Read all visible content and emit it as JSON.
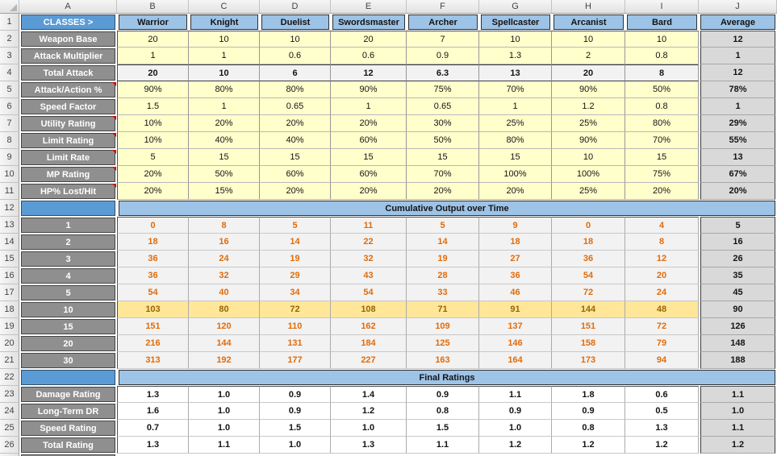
{
  "sheet": {
    "column_letters": [
      "A",
      "B",
      "C",
      "D",
      "E",
      "F",
      "G",
      "H",
      "I",
      "J"
    ]
  },
  "colors": {
    "accent_blue": "#5B9BD5",
    "light_blue": "#9DC3E6",
    "label_gray": "#8F8F8F",
    "input_yellow": "#FFFFCC",
    "calc_gray": "#F2F2F2",
    "average_gray": "#D9D9D9",
    "highlight_gold": "#FFE699",
    "orange_text": "#E26B0A",
    "highlight_text": "#9C6500"
  },
  "classes_row": {
    "row": "1",
    "label": "CLASSES >",
    "columns": [
      "Warrior",
      "Knight",
      "Duelist",
      "Swordsmaster",
      "Archer",
      "Spellcaster",
      "Arcanist",
      "Bard"
    ],
    "average_label": "Average"
  },
  "stat_rows": [
    {
      "row": "2",
      "label": "Weapon Base",
      "has_comment": false,
      "emphasis": "input",
      "values": [
        "20",
        "10",
        "10",
        "20",
        "7",
        "10",
        "10",
        "10"
      ],
      "average": "12"
    },
    {
      "row": "3",
      "label": "Attack Multiplier",
      "has_comment": false,
      "emphasis": "input",
      "values": [
        "1",
        "1",
        "0.6",
        "0.6",
        "0.9",
        "1.3",
        "2",
        "0.8"
      ],
      "average": "1"
    },
    {
      "row": "4",
      "label": "Total Attack",
      "has_comment": false,
      "emphasis": "calc",
      "values": [
        "20",
        "10",
        "6",
        "12",
        "6.3",
        "13",
        "20",
        "8"
      ],
      "average": "12"
    },
    {
      "row": "5",
      "label": "Attack/Action %",
      "has_comment": true,
      "emphasis": "input",
      "values": [
        "90%",
        "80%",
        "80%",
        "90%",
        "75%",
        "70%",
        "90%",
        "50%"
      ],
      "average": "78%"
    },
    {
      "row": "6",
      "label": "Speed Factor",
      "has_comment": false,
      "emphasis": "input",
      "values": [
        "1.5",
        "1",
        "0.65",
        "1",
        "0.65",
        "1",
        "1.2",
        "0.8"
      ],
      "average": "1"
    },
    {
      "row": "7",
      "label": "Utility Rating",
      "has_comment": true,
      "emphasis": "input",
      "values": [
        "10%",
        "20%",
        "20%",
        "20%",
        "30%",
        "25%",
        "25%",
        "80%"
      ],
      "average": "29%"
    },
    {
      "row": "8",
      "label": "Limit Rating",
      "has_comment": true,
      "emphasis": "input",
      "values": [
        "10%",
        "40%",
        "40%",
        "60%",
        "50%",
        "80%",
        "90%",
        "70%"
      ],
      "average": "55%"
    },
    {
      "row": "9",
      "label": "Limit Rate",
      "has_comment": true,
      "emphasis": "input",
      "values": [
        "5",
        "15",
        "15",
        "15",
        "15",
        "15",
        "10",
        "15"
      ],
      "average": "13"
    },
    {
      "row": "10",
      "label": "MP Rating",
      "has_comment": true,
      "emphasis": "input",
      "values": [
        "20%",
        "50%",
        "60%",
        "60%",
        "70%",
        "100%",
        "100%",
        "75%"
      ],
      "average": "67%"
    },
    {
      "row": "11",
      "label": "HP% Lost/Hit",
      "has_comment": true,
      "emphasis": "input",
      "values": [
        "20%",
        "15%",
        "20%",
        "20%",
        "20%",
        "20%",
        "25%",
        "20%"
      ],
      "average": "20%"
    }
  ],
  "sections": [
    {
      "row": "12",
      "title": "Cumulative Output over Time",
      "rows": [
        {
          "row": "13",
          "label": "1",
          "highlight": false,
          "values": [
            "0",
            "8",
            "5",
            "11",
            "5",
            "9",
            "0",
            "4"
          ],
          "average": "5"
        },
        {
          "row": "14",
          "label": "2",
          "highlight": false,
          "values": [
            "18",
            "16",
            "14",
            "22",
            "14",
            "18",
            "18",
            "8"
          ],
          "average": "16"
        },
        {
          "row": "15",
          "label": "3",
          "highlight": false,
          "values": [
            "36",
            "24",
            "19",
            "32",
            "19",
            "27",
            "36",
            "12"
          ],
          "average": "26"
        },
        {
          "row": "16",
          "label": "4",
          "highlight": false,
          "values": [
            "36",
            "32",
            "29",
            "43",
            "28",
            "36",
            "54",
            "20"
          ],
          "average": "35"
        },
        {
          "row": "17",
          "label": "5",
          "highlight": false,
          "values": [
            "54",
            "40",
            "34",
            "54",
            "33",
            "46",
            "72",
            "24"
          ],
          "average": "45"
        },
        {
          "row": "18",
          "label": "10",
          "highlight": true,
          "values": [
            "103",
            "80",
            "72",
            "108",
            "71",
            "91",
            "144",
            "48"
          ],
          "average": "90"
        },
        {
          "row": "19",
          "label": "15",
          "highlight": false,
          "values": [
            "151",
            "120",
            "110",
            "162",
            "109",
            "137",
            "151",
            "72"
          ],
          "average": "126"
        },
        {
          "row": "20",
          "label": "20",
          "highlight": false,
          "values": [
            "216",
            "144",
            "131",
            "184",
            "125",
            "146",
            "158",
            "79"
          ],
          "average": "148"
        },
        {
          "row": "21",
          "label": "30",
          "highlight": false,
          "values": [
            "313",
            "192",
            "177",
            "227",
            "163",
            "164",
            "173",
            "94"
          ],
          "average": "188"
        }
      ]
    },
    {
      "row": "22",
      "title": "Final Ratings",
      "rows": [
        {
          "row": "23",
          "label": "Damage Rating",
          "values": [
            "1.3",
            "1.0",
            "0.9",
            "1.4",
            "0.9",
            "1.1",
            "1.8",
            "0.6"
          ],
          "average": "1.1"
        },
        {
          "row": "24",
          "label": "Long-Term DR",
          "values": [
            "1.6",
            "1.0",
            "0.9",
            "1.2",
            "0.8",
            "0.9",
            "0.9",
            "0.5"
          ],
          "average": "1.0"
        },
        {
          "row": "25",
          "label": "Speed Rating",
          "values": [
            "0.7",
            "1.0",
            "1.5",
            "1.0",
            "1.5",
            "1.0",
            "0.8",
            "1.3"
          ],
          "average": "1.1"
        },
        {
          "row": "26",
          "label": "Total Rating",
          "values": [
            "1.3",
            "1.1",
            "1.0",
            "1.3",
            "1.1",
            "1.2",
            "1.2",
            "1.2"
          ],
          "average": "1.2"
        }
      ]
    }
  ]
}
